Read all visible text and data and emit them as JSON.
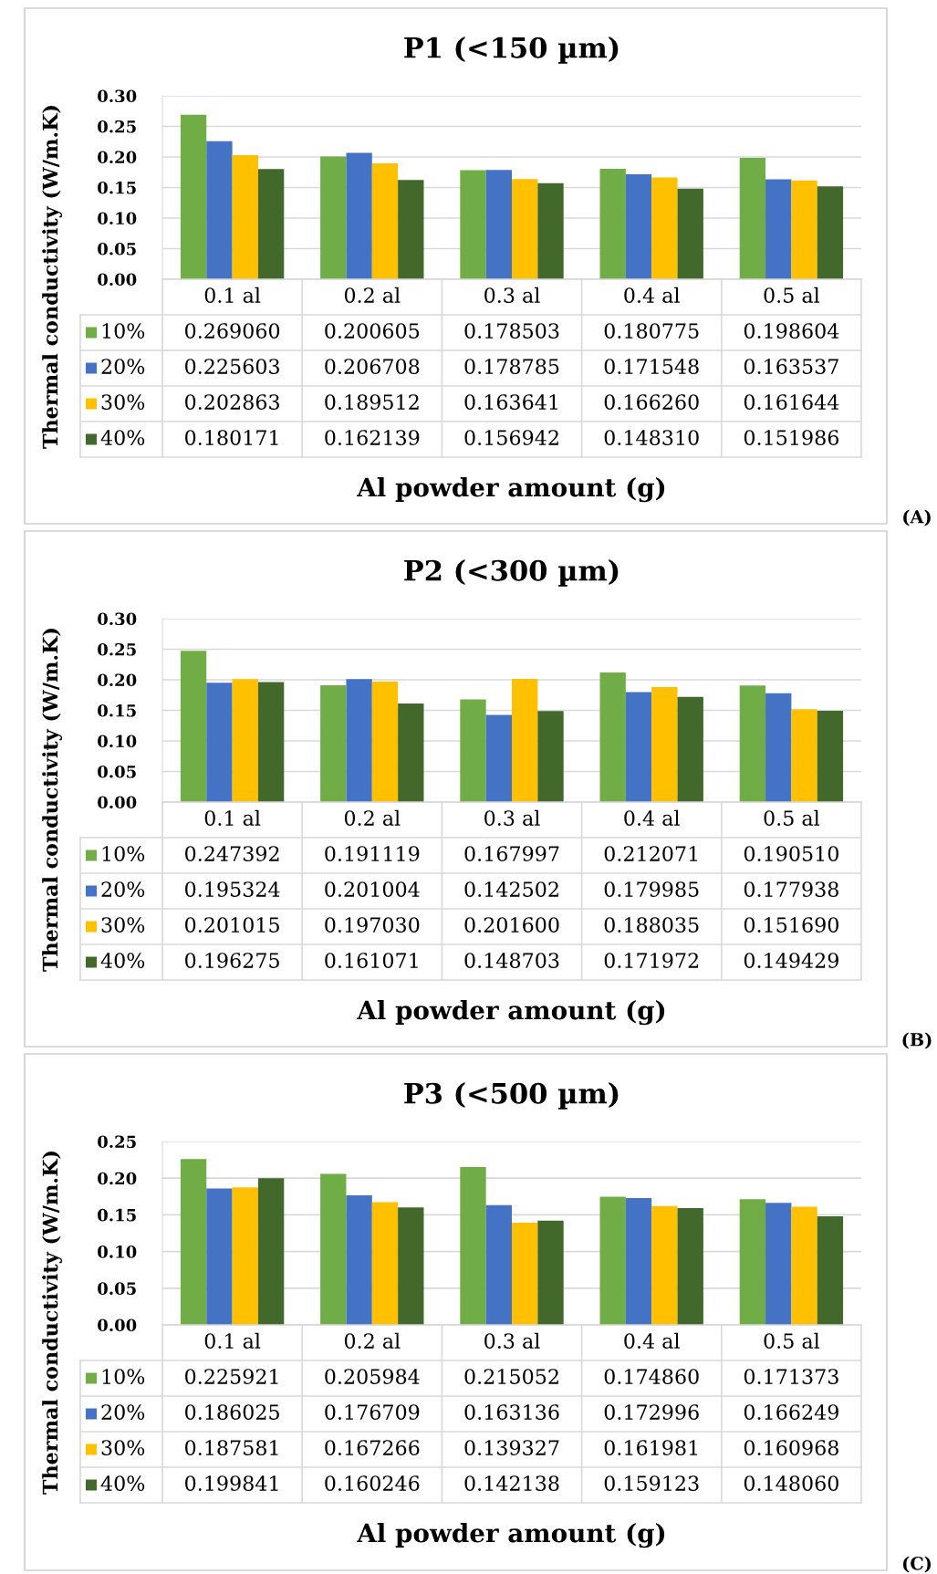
{
  "chart_data": [
    {
      "type": "bar",
      "title": "P1 (<150 µm)",
      "xlabel": "Al powder amount (g)",
      "ylabel": "Thermal conductivity (W/m.K)",
      "categories": [
        "0.1 al",
        "0.2 al",
        "0.3 al",
        "0.4 al",
        "0.5 al"
      ],
      "series": [
        {
          "name": "10%",
          "color": "#70ad47",
          "values": [
            0.26906,
            0.200605,
            0.178503,
            0.180775,
            0.198604
          ],
          "value_labels": [
            "0.269060",
            "0.200605",
            "0.178503",
            "0.180775",
            "0.198604"
          ]
        },
        {
          "name": "20%",
          "color": "#4472c4",
          "values": [
            0.225603,
            0.206708,
            0.178785,
            0.171548,
            0.163537
          ],
          "value_labels": [
            "0.225603",
            "0.206708",
            "0.178785",
            "0.171548",
            "0.163537"
          ]
        },
        {
          "name": "30%",
          "color": "#ffc000",
          "values": [
            0.202863,
            0.189512,
            0.163641,
            0.16626,
            0.161644
          ],
          "value_labels": [
            "0.202863",
            "0.189512",
            "0.163641",
            "0.166260",
            "0.161644"
          ]
        },
        {
          "name": "40%",
          "color": "#43682b",
          "values": [
            0.180171,
            0.162139,
            0.156942,
            0.14831,
            0.151986
          ],
          "value_labels": [
            "0.180171",
            "0.162139",
            "0.156942",
            "0.148310",
            "0.151986"
          ]
        }
      ],
      "ylim": [
        0,
        0.3
      ],
      "yticks": [
        {
          "value": 0,
          "label": "0.00"
        },
        {
          "value": 0.05,
          "label": "0.05"
        },
        {
          "value": 0.1,
          "label": "0.10"
        },
        {
          "value": 0.15,
          "label": "0.15"
        },
        {
          "value": 0.2,
          "label": "0.20"
        },
        {
          "value": 0.25,
          "label": "0.25"
        },
        {
          "value": 0.3,
          "label": "0.30"
        }
      ],
      "grid": "y",
      "legend": "bottom",
      "annotations": [
        "(A)"
      ]
    },
    {
      "type": "bar",
      "title": "P2 (<300 µm)",
      "xlabel": "Al powder amount (g)",
      "ylabel": "Thermal conductivity (W/m.K)",
      "categories": [
        "0.1 al",
        "0.2 al",
        "0.3 al",
        "0.4 al",
        "0.5 al"
      ],
      "series": [
        {
          "name": "10%",
          "color": "#70ad47",
          "values": [
            0.247392,
            0.191119,
            0.167997,
            0.212071,
            0.19051
          ],
          "value_labels": [
            "0.247392",
            "0.191119",
            "0.167997",
            "0.212071",
            "0.190510"
          ]
        },
        {
          "name": "20%",
          "color": "#4472c4",
          "values": [
            0.195324,
            0.201004,
            0.142502,
            0.179985,
            0.177938
          ],
          "value_labels": [
            "0.195324",
            "0.201004",
            "0.142502",
            "0.179985",
            "0.177938"
          ]
        },
        {
          "name": "30%",
          "color": "#ffc000",
          "values": [
            0.201015,
            0.19703,
            0.2016,
            0.188035,
            0.15169
          ],
          "value_labels": [
            "0.201015",
            "0.197030",
            "0.201600",
            "0.188035",
            "0.151690"
          ]
        },
        {
          "name": "40%",
          "color": "#43682b",
          "values": [
            0.196275,
            0.161071,
            0.148703,
            0.171972,
            0.149429
          ],
          "value_labels": [
            "0.196275",
            "0.161071",
            "0.148703",
            "0.171972",
            "0.149429"
          ]
        }
      ],
      "ylim": [
        0,
        0.3
      ],
      "yticks": [
        {
          "value": 0,
          "label": "0.00"
        },
        {
          "value": 0.05,
          "label": "0.05"
        },
        {
          "value": 0.1,
          "label": "0.10"
        },
        {
          "value": 0.15,
          "label": "0.15"
        },
        {
          "value": 0.2,
          "label": "0.20"
        },
        {
          "value": 0.25,
          "label": "0.25"
        },
        {
          "value": 0.3,
          "label": "0.30"
        }
      ],
      "grid": "y",
      "legend": "bottom",
      "annotations": [
        "(B)"
      ]
    },
    {
      "type": "bar",
      "title": "P3 (<500 µm)",
      "xlabel": "Al powder amount (g)",
      "ylabel": "Thermal conductivity (W/m.K)",
      "categories": [
        "0.1 al",
        "0.2 al",
        "0.3 al",
        "0.4 al",
        "0.5 al"
      ],
      "series": [
        {
          "name": "10%",
          "color": "#70ad47",
          "values": [
            0.225921,
            0.205984,
            0.215052,
            0.17486,
            0.171373
          ],
          "value_labels": [
            "0.225921",
            "0.205984",
            "0.215052",
            "0.174860",
            "0.171373"
          ]
        },
        {
          "name": "20%",
          "color": "#4472c4",
          "values": [
            0.186025,
            0.176709,
            0.163136,
            0.172996,
            0.166249
          ],
          "value_labels": [
            "0.186025",
            "0.176709",
            "0.163136",
            "0.172996",
            "0.166249"
          ]
        },
        {
          "name": "30%",
          "color": "#ffc000",
          "values": [
            0.187581,
            0.167266,
            0.139327,
            0.161981,
            0.160968
          ],
          "value_labels": [
            "0.187581",
            "0.167266",
            "0.139327",
            "0.161981",
            "0.160968"
          ]
        },
        {
          "name": "40%",
          "color": "#43682b",
          "values": [
            0.199841,
            0.160246,
            0.142138,
            0.159123,
            0.14806
          ],
          "value_labels": [
            "0.199841",
            "0.160246",
            "0.142138",
            "0.159123",
            "0.148060"
          ]
        }
      ],
      "ylim": [
        0,
        0.25
      ],
      "yticks": [
        {
          "value": 0,
          "label": "0.00"
        },
        {
          "value": 0.05,
          "label": "0.05"
        },
        {
          "value": 0.1,
          "label": "0.10"
        },
        {
          "value": 0.15,
          "label": "0.15"
        },
        {
          "value": 0.2,
          "label": "0.20"
        },
        {
          "value": 0.25,
          "label": "0.25"
        }
      ],
      "grid": "y",
      "legend": "bottom",
      "annotations": [
        "(C)"
      ]
    }
  ]
}
